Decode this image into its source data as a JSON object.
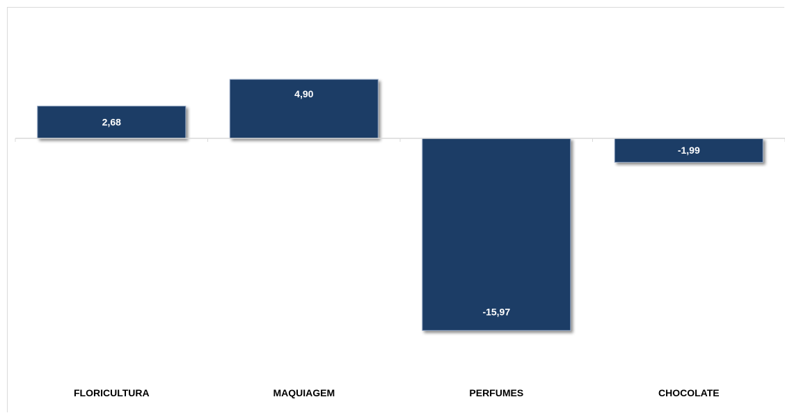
{
  "chart_data": {
    "type": "bar",
    "categories": [
      "FLORICULTURA",
      "MAQUIAGEM",
      "PERFUMES",
      "CHOCOLATE"
    ],
    "values": [
      2.68,
      4.9,
      -15.97,
      -1.99
    ],
    "data_labels": [
      "2,68",
      "4,90",
      "-15,97",
      "-1,99"
    ],
    "title": "",
    "xlabel": "",
    "ylabel": "",
    "ylim": [
      -20,
      10
    ],
    "grid": false,
    "legend": "none",
    "bar_color": "#1f3d66",
    "label_color": "#ffffff"
  }
}
